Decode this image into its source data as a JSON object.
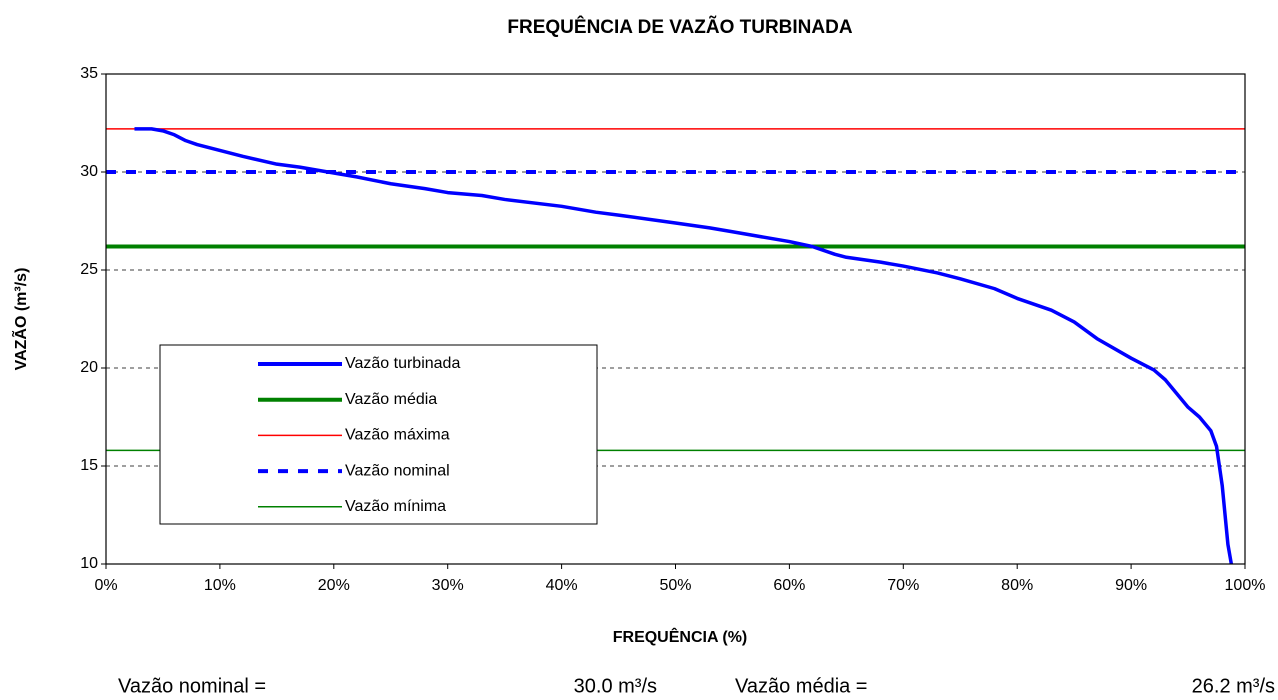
{
  "chart_data": {
    "type": "line",
    "title": "FREQUÊNCIA DE VAZÃO TURBINADA",
    "xlabel": "FREQUÊNCIA (%)",
    "ylabel": "VAZÃO (m³/s)",
    "xlim": [
      0,
      100
    ],
    "xticks": [
      {
        "value": 0,
        "label": "0%"
      },
      {
        "value": 10,
        "label": "10%"
      },
      {
        "value": 20,
        "label": "20%"
      },
      {
        "value": 30,
        "label": "30%"
      },
      {
        "value": 40,
        "label": "40%"
      },
      {
        "value": 50,
        "label": "50%"
      },
      {
        "value": 60,
        "label": "60%"
      },
      {
        "value": 70,
        "label": "70%"
      },
      {
        "value": 80,
        "label": "80%"
      },
      {
        "value": 90,
        "label": "90%"
      },
      {
        "value": 100,
        "label": "100%"
      }
    ],
    "ylim": [
      10,
      35
    ],
    "yticks": [
      10,
      15,
      20,
      25,
      30,
      35
    ],
    "grid": true,
    "series": [
      {
        "name": "Vazão turbinada",
        "color": "#0000ff",
        "x": [
          2.5,
          4,
          5,
          6,
          7,
          8,
          10,
          12,
          15,
          17,
          20,
          22,
          25,
          28,
          30,
          33,
          35,
          40,
          43,
          45,
          50,
          53,
          55,
          60,
          62,
          64,
          65,
          68,
          70,
          73,
          75,
          78,
          80,
          83,
          85,
          87,
          90,
          92,
          93,
          95,
          96,
          97,
          97.5,
          98,
          98.5,
          98.8
        ],
        "values": [
          32.2,
          32.2,
          32.1,
          31.9,
          31.6,
          31.4,
          31.1,
          30.8,
          30.4,
          30.25,
          29.95,
          29.75,
          29.4,
          29.15,
          28.95,
          28.8,
          28.6,
          28.25,
          27.95,
          27.8,
          27.4,
          27.15,
          26.95,
          26.45,
          26.2,
          25.8,
          25.65,
          25.4,
          25.2,
          24.85,
          24.55,
          24.05,
          23.55,
          22.95,
          22.35,
          21.5,
          20.5,
          19.9,
          19.4,
          18.0,
          17.5,
          16.8,
          16.0,
          14.0,
          11.0,
          10.0
        ]
      }
    ],
    "reference_lines": [
      {
        "name": "Vazão média",
        "color": "#008000",
        "value": 26.2
      },
      {
        "name": "Vazão máxima",
        "color": "#ff0000",
        "value": 32.2
      },
      {
        "name": "Vazão nominal",
        "color": "#0000ff",
        "value": 30.0,
        "dashed": true
      },
      {
        "name": "Vazão mínima",
        "color": "#008000",
        "value": 15.8
      }
    ],
    "annotations": [
      "Vazão nominal =",
      "30.0 m³/s",
      "Vazão média =",
      "26.2 m³/s"
    ]
  }
}
